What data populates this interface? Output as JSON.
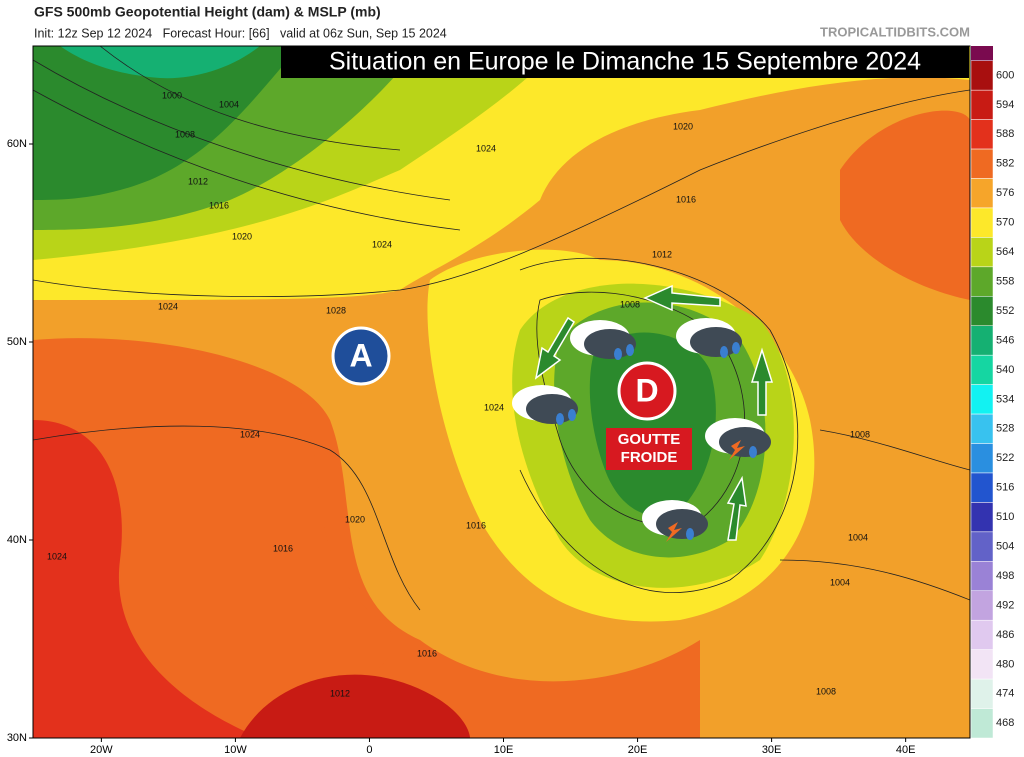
{
  "header": {
    "title": "GFS 500mb Geopotential Height (dam) & MSLP (mb)",
    "subtitle": "Init: 12z Sep 12 2024   Forecast Hour: [66]   valid at 06z Sun, Sep 15 2024",
    "source": "TROPICALTIDBITS.COM"
  },
  "map": {
    "title": "Situation en Europe le Dimanche 15 Septembre 2024",
    "lon_range": [
      -25.1,
      44.8
    ],
    "lat_range": [
      64.95,
      30
    ],
    "lat_ticks": [
      {
        "value": 60,
        "label": "60N"
      },
      {
        "value": 50,
        "label": "50N"
      },
      {
        "value": 40,
        "label": "40N"
      },
      {
        "value": 30,
        "label": "30N"
      }
    ],
    "lon_ticks": [
      {
        "value": -20,
        "label": "20W"
      },
      {
        "value": -10,
        "label": "10W"
      },
      0,
      {
        "value": 10,
        "label": "10E"
      },
      {
        "value": 20,
        "label": "20E"
      },
      {
        "value": 30,
        "label": "30E"
      },
      {
        "value": 40,
        "label": "40E"
      }
    ],
    "high_label": "A",
    "low_label": "D",
    "low_note": "GOUTTE FROIDE",
    "isobars": [
      "1000",
      "1004",
      "1008",
      "1012",
      "1016",
      "1020",
      "1024",
      "1024",
      "1028",
      "1024",
      "1020",
      "1016",
      "1024",
      "1016",
      "1012",
      "1024",
      "1020",
      "1016",
      "1012",
      "1008",
      "1024",
      "1016",
      "1008",
      "1004",
      "1004",
      "1008"
    ]
  },
  "colorbar": {
    "top_color": "#7a0a4f",
    "ticks": [
      600,
      594,
      588,
      582,
      576,
      570,
      564,
      558,
      552,
      546,
      540,
      534,
      528,
      522,
      516,
      510,
      504,
      498,
      492,
      486,
      480,
      474,
      468
    ],
    "colors": [
      "#a80f0f",
      "#c81b14",
      "#e3311c",
      "#ef6a22",
      "#f6a52a",
      "#fde82a",
      "#b9d418",
      "#5da82a",
      "#2b8a2d",
      "#15b072",
      "#15d6a2",
      "#12f2f2",
      "#38c2ef",
      "#2a8fe0",
      "#2255cf",
      "#3333b0",
      "#6262c8",
      "#9a82d6",
      "#c2a4e0",
      "#e0c9ef",
      "#f2e4f5",
      "#dff2ea",
      "#bfe9d6"
    ]
  }
}
